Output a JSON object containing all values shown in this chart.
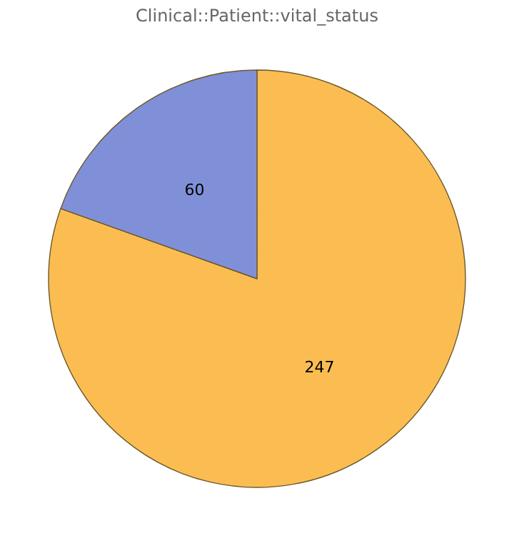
{
  "chart_data": {
    "type": "pie",
    "title": "Clinical::Patient::vital_status",
    "categories": [
      null,
      null
    ],
    "values": [
      247,
      60
    ],
    "colors": [
      "#fbbd52",
      "#8090d8"
    ],
    "data_labels": true
  }
}
